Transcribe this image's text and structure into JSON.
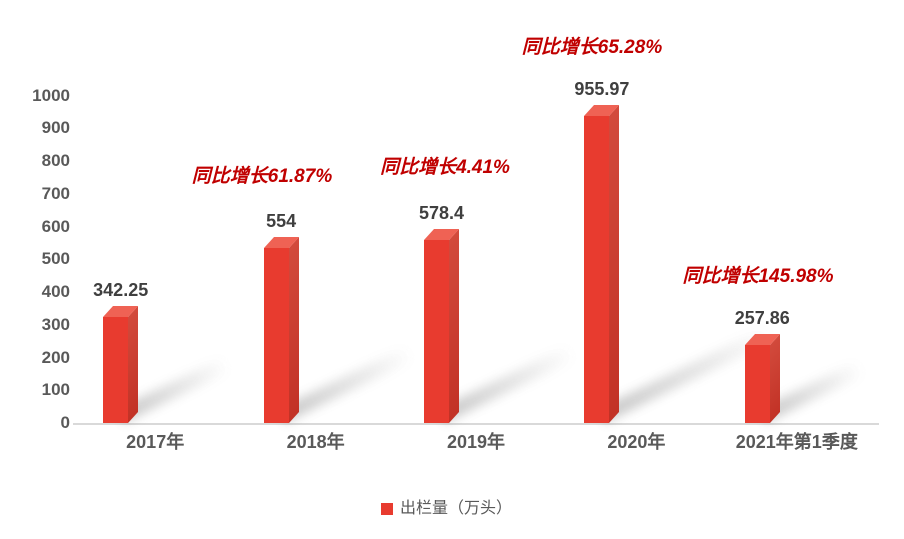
{
  "chart_data": {
    "type": "bar",
    "title": "",
    "categories": [
      "2017年",
      "2018年",
      "2019年",
      "2020年",
      "2021年第1季度"
    ],
    "values": [
      342.25,
      554,
      578.4,
      955.97,
      257.86
    ],
    "value_labels": [
      "342.25",
      "554",
      "578.4",
      "955.97",
      "257.86"
    ],
    "series_name": "出栏量（万头）",
    "annotations": [
      {
        "category": "2018年",
        "text": "同比增长61.87%"
      },
      {
        "category": "2019年",
        "text": "同比增长4.41%"
      },
      {
        "category": "2020年",
        "text": "同比增长65.28%"
      },
      {
        "category": "2021年第1季度",
        "text": "同比增长145.98%"
      }
    ],
    "xlabel": "",
    "ylabel": "",
    "ylim": [
      0,
      1000
    ],
    "ytick_step": 100,
    "yticks": [
      "0",
      "100",
      "200",
      "300",
      "400",
      "500",
      "600",
      "700",
      "800",
      "900",
      "1000"
    ],
    "grid": false,
    "legend_position": "bottom",
    "bar_style": "3d-box",
    "colors": {
      "bar_front": "#e83b2f",
      "bar_top": "#ef6254",
      "bar_side_light": "#d24a3c",
      "bar_side_dark": "#c23226",
      "annotation": "#c00000",
      "axis_text": "#595959",
      "value_text": "#3f3f3f",
      "axis_line": "#d9d9d9",
      "shadow": "#9a9a9a"
    }
  }
}
